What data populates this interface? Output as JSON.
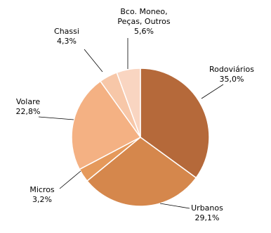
{
  "chart_data": {
    "type": "pie",
    "categories": [
      "Rodoviários",
      "Urbanos",
      "Micros",
      "Volare",
      "Chassi",
      "Bco. Moneo, Peças, Outros"
    ],
    "values": [
      35.0,
      29.1,
      3.2,
      22.8,
      4.3,
      5.6
    ],
    "value_labels": [
      "35,0%",
      "29,1%",
      "3,2%",
      "22,8%",
      "4,3%",
      "5,6%"
    ],
    "colors": [
      "#b5693a",
      "#d5874c",
      "#e5995b",
      "#f4b183",
      "#f7c7a8",
      "#f9d5c1"
    ]
  }
}
